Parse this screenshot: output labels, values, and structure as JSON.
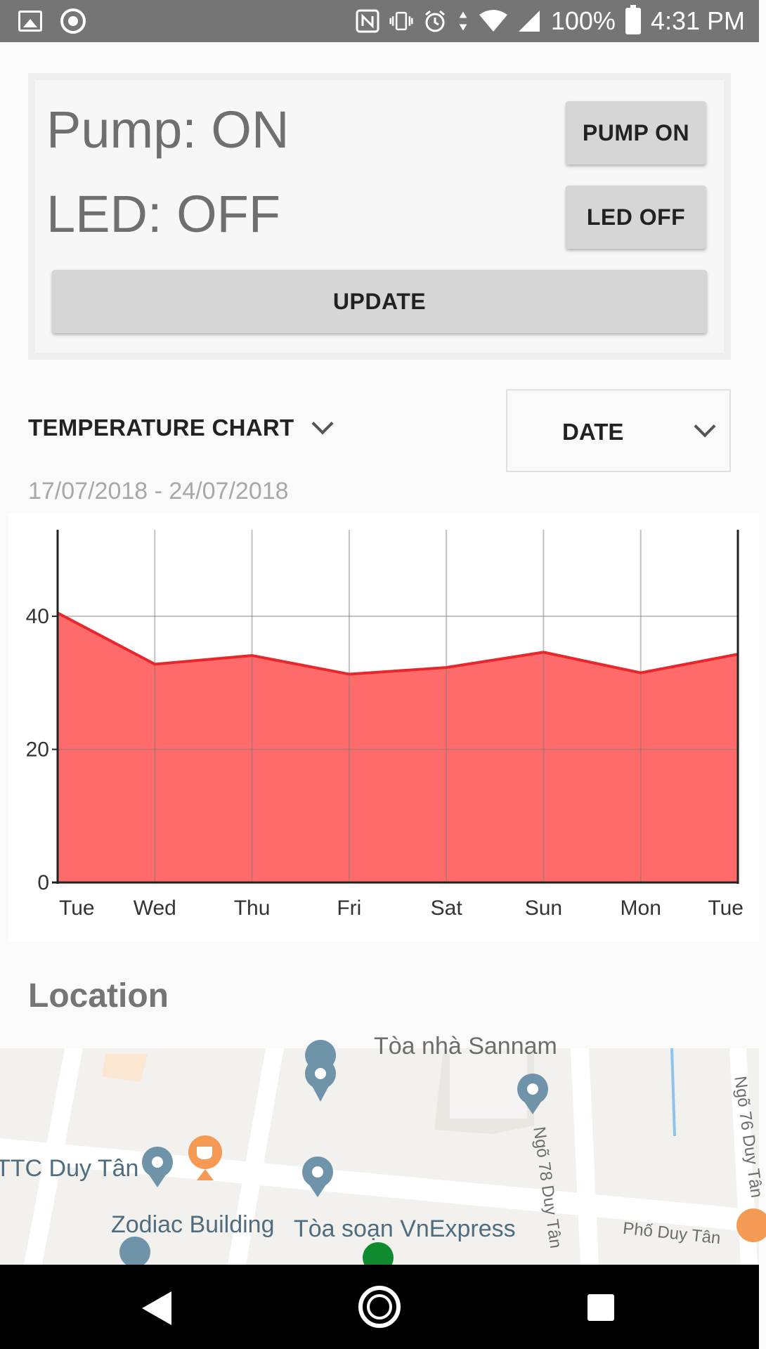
{
  "status_bar": {
    "battery": "100%",
    "time": "4:31 PM",
    "left_icons": [
      "image-icon",
      "record-icon"
    ],
    "right_icons": [
      "nfc-icon",
      "vibrate-icon",
      "alarm-icon",
      "data-arrows-icon",
      "wifi-icon",
      "signal-icon",
      "battery-charging-icon"
    ]
  },
  "controls": {
    "pump_status": "Pump: ON",
    "led_status": "LED: OFF",
    "pump_button": "PUMP ON",
    "led_button": "LED OFF",
    "update_button": "UPDATE"
  },
  "chart_header": {
    "title": "TEMPERATURE CHART",
    "filter_label": "DATE",
    "date_range": "17/07/2018 - 24/07/2018"
  },
  "chart_data": {
    "type": "area",
    "categories": [
      "Tue",
      "Wed",
      "Thu",
      "Fri",
      "Sat",
      "Sun",
      "Mon",
      "Tue"
    ],
    "series": [
      {
        "values": [
          40.5,
          32.8,
          34.1,
          31.3,
          32.3,
          34.6,
          31.5,
          34.3
        ]
      }
    ],
    "yticks": [
      0,
      20,
      40
    ],
    "ylim": [
      0,
      53
    ],
    "grid": true,
    "colors": {
      "fill": "#ff6b6b",
      "line": "#e8262b",
      "grid": "#bdbdbd"
    }
  },
  "location": {
    "title": "Location"
  },
  "map": {
    "labels": [
      "TTC Duy Tân",
      "Zodiac Building",
      "Tòa soạn VnExpress",
      "Tòa nhà Sannam"
    ],
    "streets": [
      "Ngõ 78 Duy Tân",
      "Ngõ 76 Duy Tân",
      "Phố Duy Tân"
    ],
    "pin_color": "#6f93a8",
    "cafe_color": "#f59a55",
    "park_color": "#0f8a2e"
  },
  "nav_bar": {
    "icons": [
      "back-icon",
      "home-icon",
      "recent-apps-icon"
    ]
  }
}
